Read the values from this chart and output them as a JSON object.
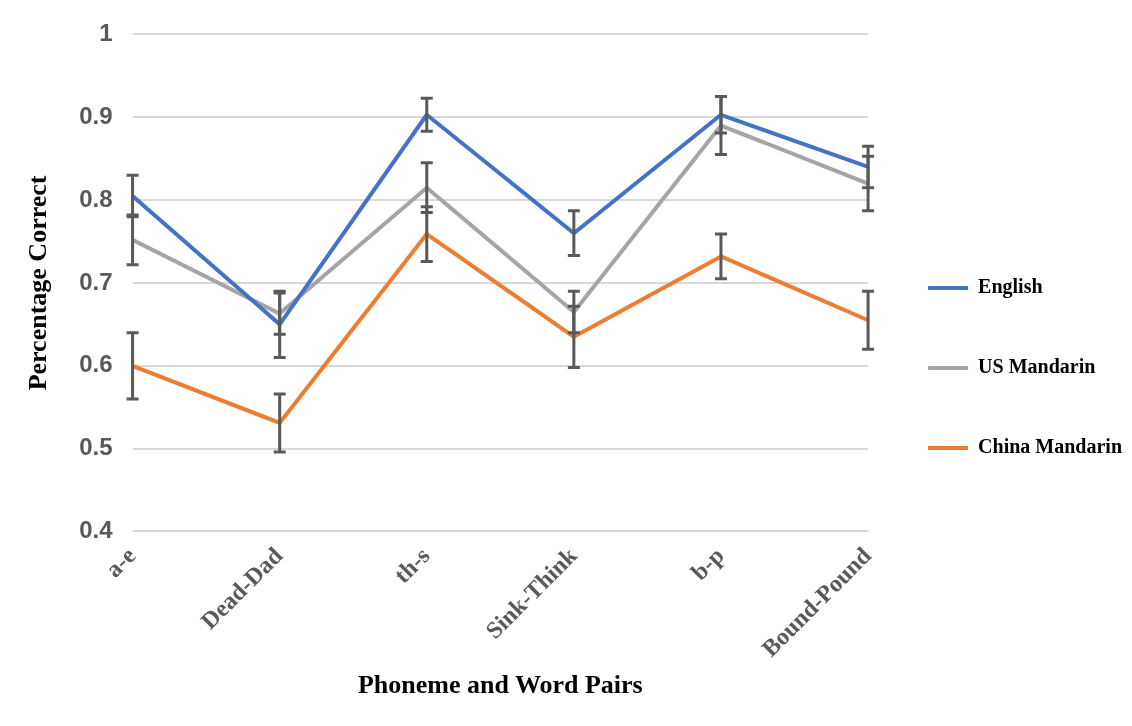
{
  "chart_data": {
    "type": "line",
    "xlabel": "Phoneme and Word Pairs",
    "ylabel": "Percentage Correct",
    "categories": [
      "a-e",
      "Dead-Dad",
      "th-s",
      "Sink-Think",
      "b-p",
      "Bound-Pound"
    ],
    "series": [
      {
        "name": "English",
        "color": "#4472c4",
        "values": [
          0.805,
          0.65,
          0.903,
          0.76,
          0.903,
          0.84
        ],
        "errors": [
          0.025,
          0.04,
          0.02,
          0.027,
          0.022,
          0.025
        ]
      },
      {
        "name": "US Mandarin",
        "color": "#a5a5a5",
        "values": [
          0.752,
          0.663,
          0.815,
          0.665,
          0.89,
          0.82
        ],
        "errors": [
          0.03,
          0.025,
          0.03,
          0.025,
          0.035,
          0.033
        ]
      },
      {
        "name": "China Mandarin",
        "color": "#ed7d31",
        "values": [
          0.6,
          0.531,
          0.759,
          0.635,
          0.732,
          0.655
        ],
        "errors": [
          0.04,
          0.035,
          0.033,
          0.037,
          0.027,
          0.035
        ]
      }
    ],
    "ylim": [
      0.4,
      1
    ],
    "yticks": [
      0.4,
      0.5,
      0.6,
      0.7,
      0.8,
      0.9,
      1
    ],
    "grid": "y",
    "legend": "right",
    "marker": "none",
    "line_style": "solid"
  }
}
